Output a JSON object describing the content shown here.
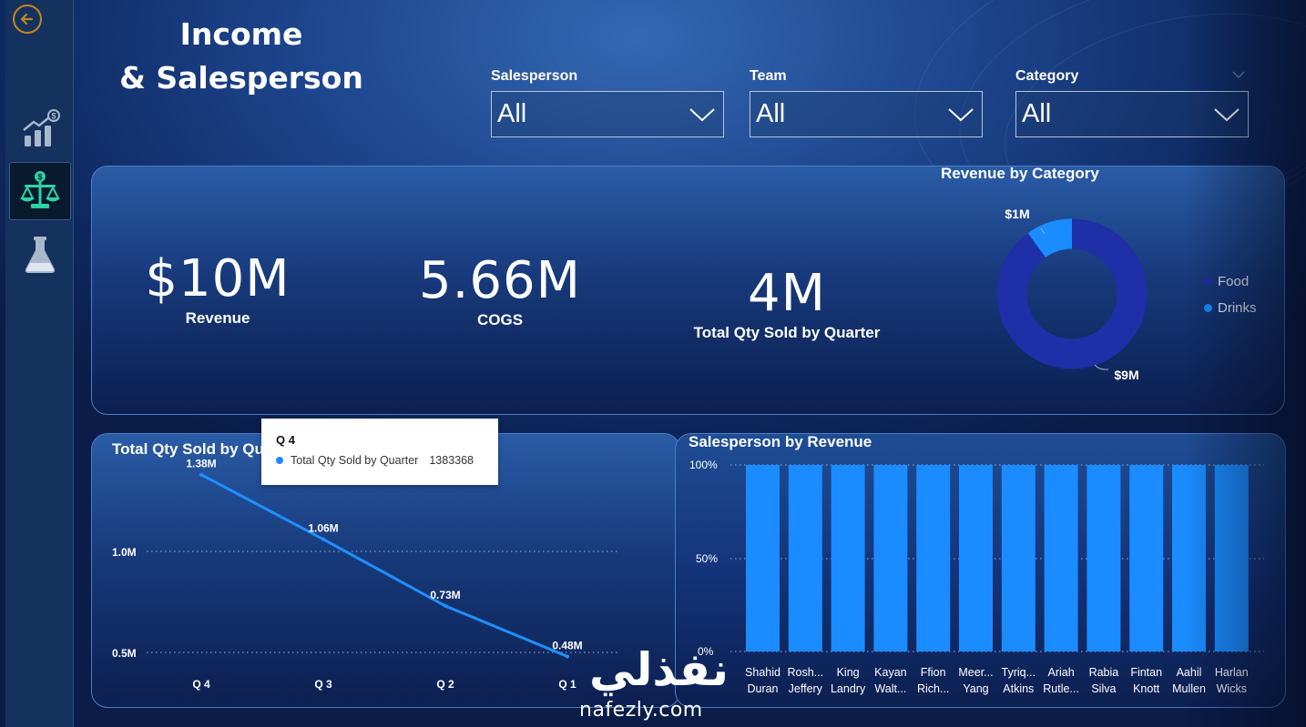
{
  "title": {
    "line1": "Income",
    "line2": "& Salesperson"
  },
  "sidebar": {
    "items": [
      {
        "name": "revenue-growth-icon",
        "active": false
      },
      {
        "name": "balance-scale-icon",
        "active": true
      },
      {
        "name": "flask-icon",
        "active": false
      }
    ]
  },
  "slicers": [
    {
      "label": "Salesperson",
      "value": "All"
    },
    {
      "label": "Team",
      "value": "All"
    },
    {
      "label": "Category",
      "value": "All"
    }
  ],
  "kpis": {
    "revenue": {
      "value": "$10M",
      "label": "Revenue"
    },
    "cogs": {
      "value": "5.66M",
      "label": "COGS"
    },
    "qty": {
      "value": "4M",
      "label": "Total Qty Sold by Quarter"
    }
  },
  "colors": {
    "food": "#1f2fa8",
    "drinks": "#1a8cff",
    "line": "#1f8fff",
    "bars": "#1a8cff"
  },
  "chart_data": [
    {
      "type": "pie",
      "title": "Revenue by Category",
      "categories": [
        "Food",
        "Drinks"
      ],
      "values": [
        9,
        1
      ],
      "data_labels": [
        "$9M",
        "$1M"
      ],
      "legend": "right"
    },
    {
      "type": "line",
      "title": "Total Qty Sold by Qu",
      "categories": [
        "Q 4",
        "Q 3",
        "Q 2",
        "Q 1"
      ],
      "series": [
        {
          "name": "Total Qty Sold by Quarter",
          "values": [
            1.38,
            1.06,
            0.73,
            0.48
          ]
        }
      ],
      "data_labels": [
        "1.38M",
        "1.06M",
        "0.73M",
        "0.48M"
      ],
      "y_ticks": [
        "1.0M",
        "0.5M"
      ],
      "ylim": [
        0.5,
        1.38
      ],
      "grid": true
    },
    {
      "type": "bar",
      "title": "Salesperson by Revenue",
      "categories": [
        [
          "Shahid",
          "Duran"
        ],
        [
          "Rosh...",
          "Jeffery"
        ],
        [
          "King",
          "Landry"
        ],
        [
          "Kayan",
          "Walt..."
        ],
        [
          "Ffion",
          "Rich..."
        ],
        [
          "Meer...",
          "Yang"
        ],
        [
          "Tyriq...",
          "Atkins"
        ],
        [
          "Ariah",
          "Rutle..."
        ],
        [
          "Rabia",
          "Silva"
        ],
        [
          "Fintan",
          "Knott"
        ],
        [
          "Aahil",
          "Mullen"
        ],
        [
          "Harlan",
          "Wicks"
        ]
      ],
      "values": [
        100,
        100,
        100,
        100,
        100,
        100,
        100,
        100,
        100,
        100,
        100,
        100
      ],
      "y_ticks": [
        "100%",
        "50%",
        "0%"
      ],
      "ylim": [
        0,
        100
      ],
      "grid": true
    }
  ],
  "tooltip": {
    "title": "Q 4",
    "series": "Total Qty Sold by Quarter",
    "value": "1383368"
  },
  "watermark": {
    "arabic": "نفذلي",
    "latin": "nafezly.com"
  }
}
